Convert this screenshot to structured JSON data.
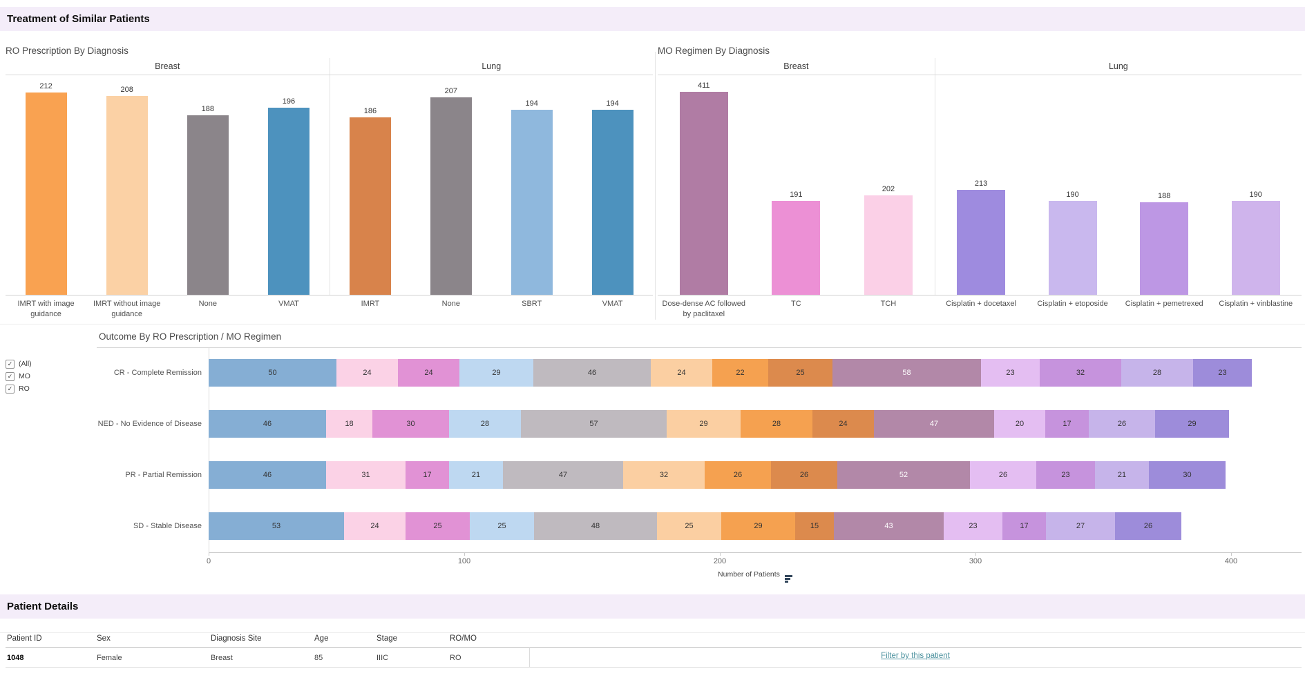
{
  "page": {
    "title": "Treatment of Similar Patients"
  },
  "chart_data": [
    {
      "id": "ro",
      "type": "bar",
      "title": "RO Prescription By Diagnosis",
      "ylim": [
        0,
        230
      ],
      "grid": false,
      "groups": [
        {
          "label": "Breast",
          "bars": [
            {
              "label": "IMRT with image guidance",
              "value": 212,
              "color": "#F9A251"
            },
            {
              "label": "IMRT without image guidance",
              "value": 208,
              "color": "#FBD1A5"
            },
            {
              "label": "None",
              "value": 188,
              "color": "#8B858A"
            },
            {
              "label": "VMAT",
              "value": 196,
              "color": "#4D92BE"
            }
          ]
        },
        {
          "label": "Lung",
          "bars": [
            {
              "label": "IMRT",
              "value": 186,
              "color": "#D8834B"
            },
            {
              "label": "None",
              "value": 207,
              "color": "#8B858A"
            },
            {
              "label": "SBRT",
              "value": 194,
              "color": "#8FB8DD"
            },
            {
              "label": "VMAT",
              "value": 194,
              "color": "#4D92BE"
            }
          ]
        }
      ]
    },
    {
      "id": "mo",
      "type": "bar",
      "title": "MO Regimen By Diagnosis",
      "ylim": [
        0,
        445
      ],
      "grid": false,
      "groups": [
        {
          "label": "Breast",
          "bars": [
            {
              "label": "Dose-dense AC followed by paclitaxel",
              "value": 411,
              "color": "#B07CA4"
            },
            {
              "label": "TC",
              "value": 191,
              "color": "#EC90D5"
            },
            {
              "label": "TCH",
              "value": 202,
              "color": "#FBD0E7"
            }
          ]
        },
        {
          "label": "Lung",
          "bars": [
            {
              "label": "Cisplatin + docetaxel",
              "value": 213,
              "color": "#9E8BDF"
            },
            {
              "label": "Cisplatin + etoposide",
              "value": 190,
              "color": "#C9B8EE"
            },
            {
              "label": "Cisplatin + pemetrexed",
              "value": 188,
              "color": "#BD97E4"
            },
            {
              "label": "Cisplatin + vinblastine",
              "value": 190,
              "color": "#CFB4EC"
            }
          ]
        }
      ]
    },
    {
      "id": "outcome",
      "type": "bar",
      "orientation": "horizontal",
      "stacked": true,
      "title": "Outcome By RO Prescription / MO Regimen",
      "xlabel": "Number of Patients",
      "xlim": [
        0,
        400
      ],
      "ticks": [
        0,
        100,
        200,
        300,
        400
      ],
      "legend_position": "none",
      "segment_colors": [
        "#85AED4",
        "#FBD2E6",
        "#E192D5",
        "#BED8F1",
        "#BFBABF",
        "#FBCFA2",
        "#F5A150",
        "#DC8A4D",
        "#B288A8",
        "#E4BEF2",
        "#C693DD",
        "#C6B4EA",
        "#9D8CDA"
      ],
      "white_text_segment": 8,
      "rows": [
        {
          "label": "CR - Complete Remission",
          "values": [
            50,
            24,
            24,
            29,
            46,
            24,
            22,
            25,
            58,
            23,
            32,
            28,
            23
          ]
        },
        {
          "label": "NED - No Evidence of Disease",
          "values": [
            46,
            18,
            30,
            28,
            57,
            29,
            28,
            24,
            47,
            20,
            17,
            26,
            29
          ]
        },
        {
          "label": "PR - Partial Remission",
          "values": [
            46,
            31,
            17,
            21,
            47,
            32,
            26,
            26,
            52,
            26,
            23,
            21,
            30
          ]
        },
        {
          "label": "SD - Stable Disease",
          "values": [
            53,
            24,
            25,
            25,
            48,
            25,
            29,
            15,
            43,
            23,
            17,
            27,
            26
          ]
        }
      ],
      "filters": [
        {
          "label": "(All)",
          "checked": true
        },
        {
          "label": "MO",
          "checked": true
        },
        {
          "label": "RO",
          "checked": true
        }
      ]
    }
  ],
  "patient_details": {
    "title": "Patient Details",
    "columns": [
      "Patient ID",
      "Sex",
      "Diagnosis Site",
      "Age",
      "Stage",
      "RO/MO"
    ],
    "rows": [
      [
        "1048",
        "Female",
        "Breast",
        "85",
        "IIIC",
        "RO"
      ]
    ],
    "link_label": "Filter by this patient",
    "link_color": "#4D929F"
  }
}
